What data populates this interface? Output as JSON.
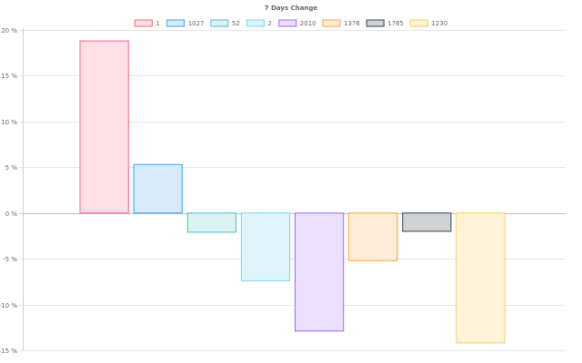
{
  "chart_data": {
    "type": "bar",
    "title": "7 Days Change",
    "xlabel": "",
    "ylabel": "",
    "categories": [
      ""
    ],
    "ylim": [
      -15,
      20
    ],
    "y_ticks": [
      20,
      15,
      10,
      5,
      0,
      -5,
      -10,
      -15
    ],
    "y_tick_labels": [
      "20 %",
      "15 %",
      "10 %",
      "5 %",
      "0 %",
      "-5 %",
      "-10 %",
      "-15 %"
    ],
    "grid": true,
    "legend_position": "top",
    "series": [
      {
        "name": "1",
        "values": [
          18.8
        ],
        "fill": "#ffe0e6",
        "stroke": "#ff6384"
      },
      {
        "name": "1027",
        "values": [
          5.3
        ],
        "fill": "#d7ecfb",
        "stroke": "#36a2eb"
      },
      {
        "name": "52",
        "values": [
          -2.1
        ],
        "fill": "#dbf2f2",
        "stroke": "#4bc0c0"
      },
      {
        "name": "2",
        "values": [
          -7.4
        ],
        "fill": "#e0f5fb",
        "stroke": "#7cd3ea"
      },
      {
        "name": "2010",
        "values": [
          -12.9
        ],
        "fill": "#ebe0ff",
        "stroke": "#9966ff"
      },
      {
        "name": "1376",
        "values": [
          -5.2
        ],
        "fill": "#ffecd9",
        "stroke": "#ff9f40"
      },
      {
        "name": "1765",
        "values": [
          -2.0
        ],
        "fill": "#d0d3d6",
        "stroke": "#35404a"
      },
      {
        "name": "1230",
        "values": [
          -14.2
        ],
        "fill": "#fff3d9",
        "stroke": "#ffcd56"
      }
    ]
  }
}
